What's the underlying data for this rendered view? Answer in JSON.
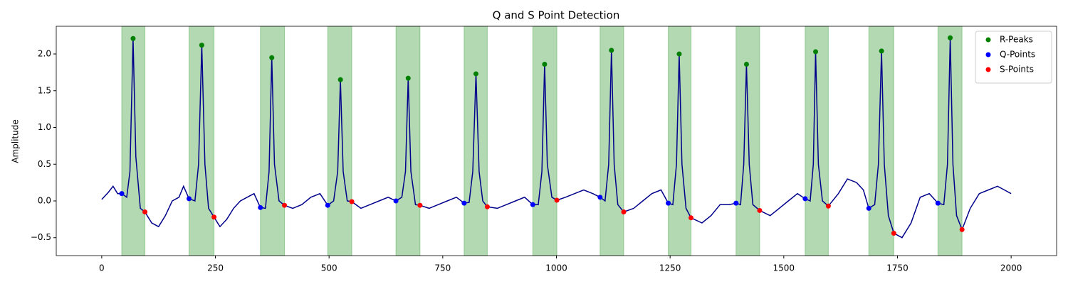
{
  "chart_data": {
    "type": "line",
    "title": "Q and S Point Detection",
    "ylabel": "Amplitude",
    "line_color": "#00008b",
    "span_color": "green",
    "x": [
      0,
      15,
      25,
      35,
      44,
      55,
      62,
      69,
      75,
      85,
      95,
      110,
      125,
      140,
      155,
      170,
      180,
      192,
      205,
      213,
      220,
      227,
      235,
      247,
      260,
      275,
      290,
      305,
      320,
      335,
      349,
      360,
      368,
      374,
      380,
      390,
      402,
      420,
      440,
      460,
      480,
      497,
      510,
      519,
      525,
      531,
      540,
      550,
      570,
      590,
      610,
      630,
      647,
      660,
      668,
      674,
      680,
      690,
      700,
      720,
      740,
      760,
      780,
      797,
      808,
      816,
      823,
      830,
      838,
      848,
      870,
      890,
      910,
      930,
      948,
      960,
      968,
      974,
      980,
      990,
      1001,
      1020,
      1040,
      1060,
      1080,
      1096,
      1107,
      1115,
      1121,
      1127,
      1135,
      1148,
      1170,
      1190,
      1210,
      1230,
      1246,
      1256,
      1264,
      1270,
      1276,
      1285,
      1296,
      1320,
      1340,
      1360,
      1380,
      1395,
      1405,
      1412,
      1418,
      1424,
      1432,
      1447,
      1470,
      1490,
      1510,
      1530,
      1547,
      1558,
      1565,
      1570,
      1576,
      1585,
      1598,
      1620,
      1640,
      1660,
      1675,
      1687,
      1700,
      1708,
      1715,
      1721,
      1730,
      1742,
      1760,
      1780,
      1800,
      1820,
      1839,
      1852,
      1860,
      1866,
      1872,
      1880,
      1892,
      1910,
      1930,
      1950,
      1970,
      1985,
      2000
    ],
    "values": [
      0.02,
      0.12,
      0.2,
      0.1,
      0.1,
      0.05,
      0.4,
      2.21,
      0.6,
      -0.1,
      -0.15,
      -0.3,
      -0.35,
      -0.2,
      0.0,
      0.05,
      0.2,
      0.03,
      0.0,
      0.5,
      2.12,
      0.5,
      -0.1,
      -0.22,
      -0.35,
      -0.25,
      -0.1,
      0.0,
      0.05,
      0.1,
      -0.09,
      -0.1,
      0.4,
      1.95,
      0.5,
      0.0,
      -0.06,
      -0.1,
      -0.05,
      0.05,
      0.1,
      -0.06,
      0.0,
      0.4,
      1.65,
      0.4,
      0.0,
      -0.01,
      -0.1,
      -0.05,
      0.0,
      0.05,
      0.0,
      0.05,
      0.4,
      1.67,
      0.4,
      -0.05,
      -0.06,
      -0.1,
      -0.05,
      0.0,
      0.05,
      -0.03,
      -0.02,
      0.4,
      1.73,
      0.4,
      0.0,
      -0.08,
      -0.1,
      -0.05,
      0.0,
      0.05,
      -0.05,
      -0.05,
      0.4,
      1.86,
      0.5,
      0.05,
      0.01,
      0.05,
      0.1,
      0.15,
      0.1,
      0.05,
      0.0,
      0.5,
      2.05,
      0.5,
      -0.05,
      -0.15,
      -0.1,
      0.0,
      0.1,
      0.15,
      -0.03,
      -0.05,
      0.5,
      2.0,
      0.5,
      -0.1,
      -0.23,
      -0.3,
      -0.2,
      -0.05,
      -0.05,
      -0.03,
      -0.05,
      0.5,
      1.86,
      0.5,
      -0.05,
      -0.13,
      -0.2,
      -0.1,
      0.0,
      0.1,
      0.03,
      0.0,
      0.5,
      2.03,
      0.5,
      0.0,
      -0.07,
      0.1,
      0.3,
      0.25,
      0.15,
      -0.1,
      -0.05,
      0.5,
      2.04,
      0.5,
      -0.2,
      -0.44,
      -0.5,
      -0.3,
      0.05,
      0.1,
      -0.03,
      -0.05,
      0.5,
      2.22,
      0.5,
      -0.2,
      -0.39,
      -0.1,
      0.1,
      0.15,
      0.2,
      0.15,
      0.1
    ],
    "series": [
      {
        "name": "R-Peaks",
        "color": "green",
        "x": [
          69,
          220,
          374,
          525,
          674,
          823,
          974,
          1121,
          1270,
          1418,
          1570,
          1715,
          1866
        ],
        "values": [
          2.21,
          2.12,
          1.95,
          1.65,
          1.67,
          1.73,
          1.86,
          2.05,
          2.0,
          1.86,
          2.03,
          2.04,
          2.22
        ]
      },
      {
        "name": "Q-Points",
        "color": "blue",
        "x": [
          44,
          192,
          349,
          497,
          647,
          797,
          948,
          1096,
          1246,
          1395,
          1547,
          1687,
          1839
        ],
        "values": [
          0.1,
          0.03,
          -0.09,
          -0.06,
          0.0,
          -0.03,
          -0.05,
          0.05,
          -0.03,
          -0.03,
          0.03,
          -0.1,
          -0.03
        ]
      },
      {
        "name": "S-Points",
        "color": "red",
        "x": [
          95,
          247,
          402,
          550,
          700,
          848,
          1001,
          1148,
          1296,
          1447,
          1598,
          1742,
          1892
        ],
        "values": [
          -0.15,
          -0.22,
          -0.06,
          -0.01,
          -0.06,
          -0.08,
          0.01,
          -0.15,
          -0.23,
          -0.13,
          -0.07,
          -0.44,
          -0.39
        ]
      }
    ],
    "xlim": [
      -100,
      2100
    ],
    "ylim": [
      -0.744,
      2.377
    ],
    "xticks": [
      0,
      250,
      500,
      750,
      1000,
      1250,
      1500,
      1750,
      2000
    ],
    "yticks": [
      {
        "value": -0.5,
        "label": "−0.5"
      },
      {
        "value": 0,
        "label": "0.0"
      },
      {
        "value": 0.5,
        "label": "0.5"
      },
      {
        "value": 1,
        "label": "1.0"
      },
      {
        "value": 1.5,
        "label": "1.5"
      },
      {
        "value": 2,
        "label": "2.0"
      }
    ],
    "legend": "upper right"
  }
}
